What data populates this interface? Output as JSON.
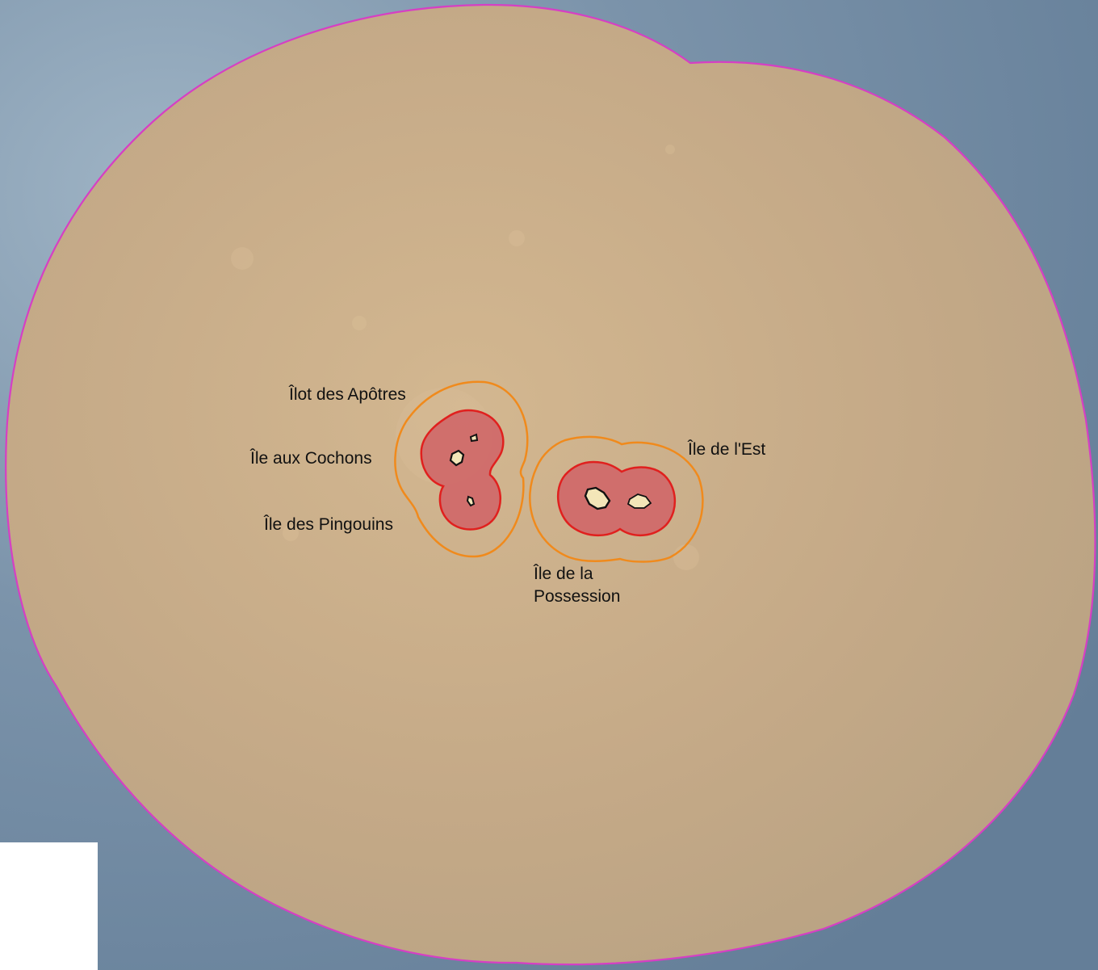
{
  "map": {
    "labels": {
      "apotres": "Îlot des Apôtres",
      "cochons": "Île aux Cochons",
      "pingouins": "Île des Pingouins",
      "est": "Île de l'Est",
      "possession_line1": "Île de la",
      "possession_line2": "Possession"
    },
    "colors": {
      "ocean": "#6f8aa3",
      "ocean_light": "#8fa7bb",
      "outer_zone_fill": "#c8ad88",
      "outer_zone_stroke": "#d63fc4",
      "middle_zone_stroke": "#f08a1c",
      "inner_zone_fill": "#d06a6a",
      "inner_zone_stroke": "#e0201e",
      "land_fill": "#f3e6b8",
      "land_stroke": "#111111",
      "corner_box": "#ffffff"
    },
    "zones": [
      {
        "name": "outer-boundary-zone",
        "stroke": "magenta"
      },
      {
        "name": "intermediate-zone",
        "stroke": "orange"
      },
      {
        "name": "inner-zone",
        "stroke": "red"
      }
    ]
  }
}
